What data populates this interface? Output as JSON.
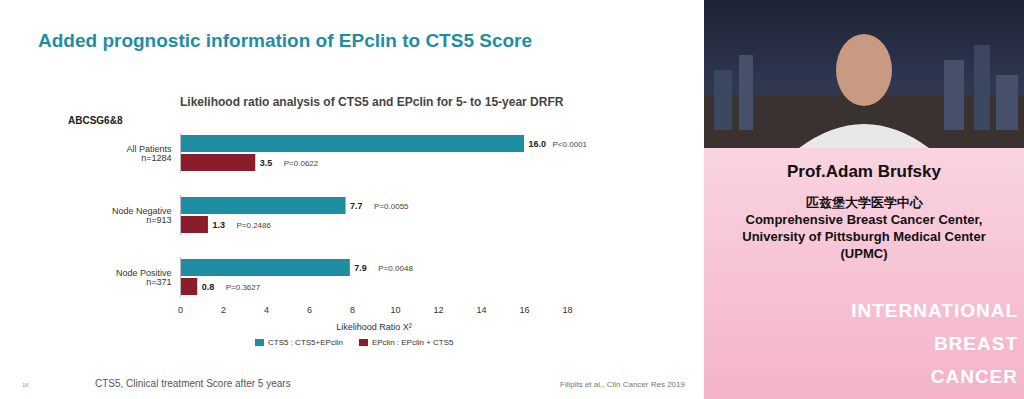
{
  "slide": {
    "title": "Added prognostic information of EPclin to CTS5 Score",
    "footnote": "CTS5, Clinical treatment Score after 5 years",
    "citation": "Filipits et al., Clin Cancer Res 2019",
    "page": "16"
  },
  "speaker_panel": {
    "name": "Prof.Adam Brufsky",
    "affiliation": [
      "匹兹堡大学医学中心",
      "Comprehensive Breast Cancer Center,",
      "University of Pittsburgh Medical Center",
      "(UPMC)"
    ],
    "banner": [
      "INTERNATIONAL",
      "BREAST",
      "CANCER"
    ]
  },
  "chart_data": {
    "type": "bar",
    "orientation": "horizontal",
    "title": "Likelihood ratio analysis of CTS5 and EPclin for 5- to 15-year DRFR",
    "panel_label": "ABCSG6&8",
    "categories": [
      "All Patients",
      "Node Negative",
      "Node Positive"
    ],
    "n_labels": [
      "n=1284",
      "n=913",
      "n=371"
    ],
    "x_label": "Likelihood Ratio Χ²",
    "xlim": [
      0,
      18
    ],
    "xticks": [
      0,
      2,
      4,
      6,
      8,
      10,
      12,
      14,
      16,
      18
    ],
    "grid": false,
    "data_labels": true,
    "legend": "bottom",
    "series": [
      {
        "name": "CTS5 : CTS5+EPclin",
        "color": "#1f8ea3",
        "values": [
          16.0,
          7.7,
          7.9
        ],
        "value_labels": [
          "16.0",
          "7.7",
          "7.9"
        ],
        "p_labels": [
          "P<0.0001",
          "P=0.0055",
          "P=0.0048"
        ]
      },
      {
        "name": "EPclin : EPclin + CTS5",
        "color": "#8b1c2c",
        "values": [
          3.5,
          1.3,
          0.8
        ],
        "value_labels": [
          "3.5",
          "1.3",
          "0.8"
        ],
        "p_labels": [
          "P=0.0622",
          "P=0.2486",
          "P=0.3627"
        ]
      }
    ]
  }
}
